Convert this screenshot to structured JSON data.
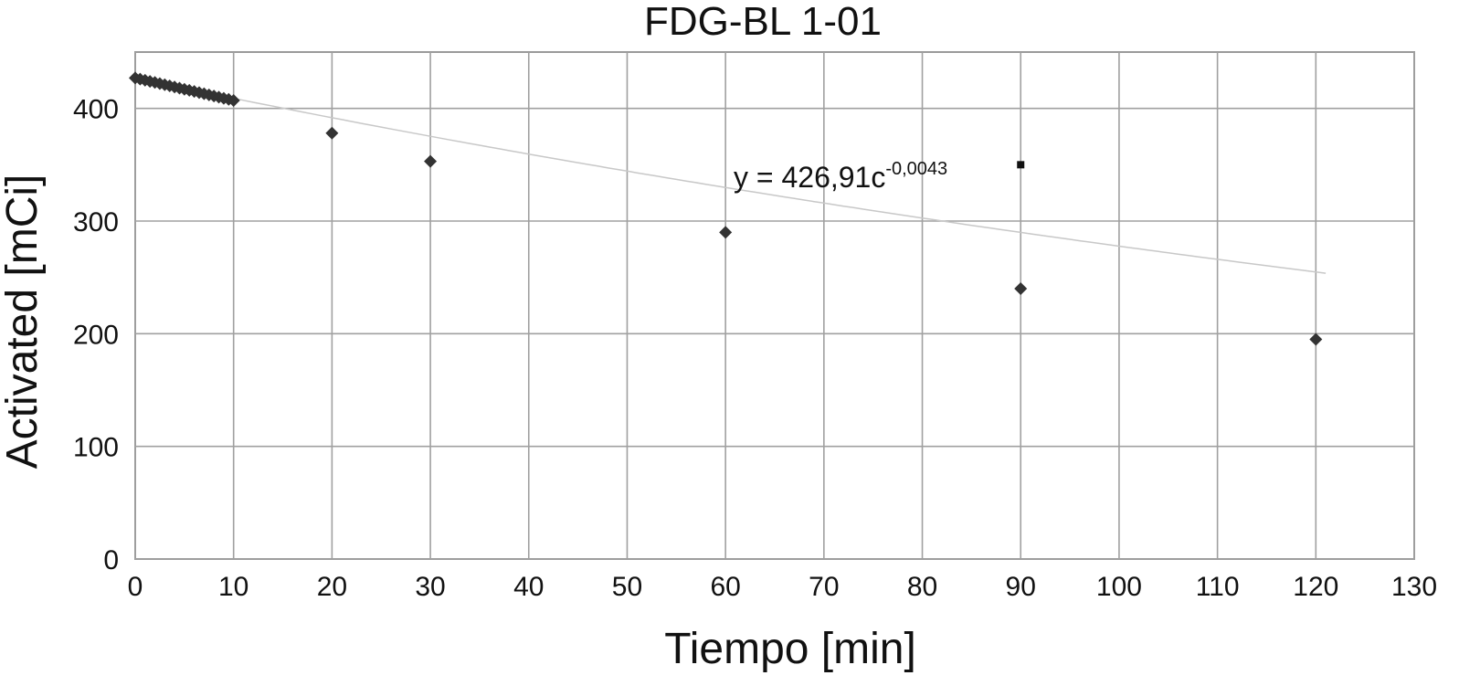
{
  "chart_data": {
    "type": "scatter",
    "title": "FDG-BL 1-01",
    "xlabel": "Tiempo [min]",
    "ylabel": "Activated [mCi]",
    "xlim": [
      0,
      130
    ],
    "ylim": [
      0,
      450
    ],
    "x_ticks": [
      0,
      10,
      20,
      30,
      40,
      50,
      60,
      70,
      80,
      90,
      100,
      110,
      120,
      130
    ],
    "y_ticks": [
      0,
      100,
      200,
      300,
      400
    ],
    "grid": true,
    "legend": "none",
    "series": [
      {
        "marker": "diamond",
        "color": "#333333",
        "points": [
          {
            "x": 0,
            "y": 427
          },
          {
            "x": 0.5,
            "y": 426
          },
          {
            "x": 1,
            "y": 425
          },
          {
            "x": 1.5,
            "y": 424
          },
          {
            "x": 2,
            "y": 423
          },
          {
            "x": 2.5,
            "y": 422
          },
          {
            "x": 3,
            "y": 421
          },
          {
            "x": 3.5,
            "y": 420
          },
          {
            "x": 4,
            "y": 419
          },
          {
            "x": 4.5,
            "y": 418
          },
          {
            "x": 5,
            "y": 417
          },
          {
            "x": 5.5,
            "y": 416
          },
          {
            "x": 6,
            "y": 415
          },
          {
            "x": 6.5,
            "y": 414
          },
          {
            "x": 7,
            "y": 413
          },
          {
            "x": 7.5,
            "y": 412
          },
          {
            "x": 8,
            "y": 411
          },
          {
            "x": 8.5,
            "y": 410
          },
          {
            "x": 9,
            "y": 409
          },
          {
            "x": 9.5,
            "y": 408
          },
          {
            "x": 10,
            "y": 407
          },
          {
            "x": 20,
            "y": 378
          },
          {
            "x": 30,
            "y": 353
          },
          {
            "x": 60,
            "y": 290
          },
          {
            "x": 90,
            "y": 240
          },
          {
            "x": 120,
            "y": 195
          }
        ]
      }
    ],
    "trendline": {
      "color": "#c8c8c8",
      "equation_text": "y = 426,91c",
      "equation_exponent": "-0,0043"
    },
    "annotation_marker": {
      "x": 90,
      "y": 350
    }
  }
}
